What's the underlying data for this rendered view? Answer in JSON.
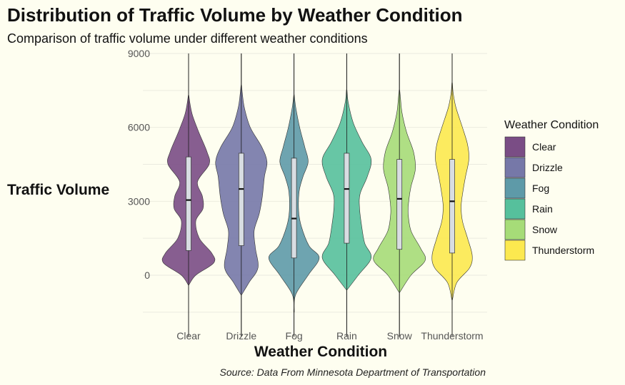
{
  "chart_data": {
    "type": "violin",
    "title": "Distribution of Traffic Volume by Weather Condition",
    "subtitle": "Comparison of traffic volume under different weather conditions",
    "xlabel": "Weather Condition",
    "ylabel": "Traffic Volume",
    "caption": "Source: Data From Minnesota Department of Transportation",
    "ylim": [
      -1500,
      9000
    ],
    "yticks": [
      0,
      3000,
      6000,
      9000
    ],
    "grid": true,
    "legend_title": "Weather Condition",
    "legend_position": "right",
    "categories": [
      "Clear",
      "Drizzle",
      "Fog",
      "Rain",
      "Snow",
      "Thunderstorm"
    ],
    "colors": [
      "#7a4d85",
      "#7678a8",
      "#5e9aa8",
      "#56c09c",
      "#a6dc78",
      "#fce94f"
    ],
    "series": [
      {
        "name": "Clear",
        "whisker": [
          -2500,
          9000
        ],
        "box": {
          "q1": 1000,
          "median": 3050,
          "q3": 4800
        },
        "density": [
          [
            -400,
            0.01
          ],
          [
            0,
            0.28
          ],
          [
            500,
            0.98
          ],
          [
            900,
            0.9
          ],
          [
            1500,
            0.42
          ],
          [
            2200,
            0.28
          ],
          [
            2700,
            0.56
          ],
          [
            3200,
            0.54
          ],
          [
            3800,
            0.35
          ],
          [
            4500,
            0.8
          ],
          [
            5000,
            0.72
          ],
          [
            5800,
            0.4
          ],
          [
            6500,
            0.15
          ],
          [
            7000,
            0.05
          ],
          [
            7300,
            0.01
          ]
        ]
      },
      {
        "name": "Drizzle",
        "whisker": [
          -2500,
          9000
        ],
        "box": {
          "q1": 1200,
          "median": 3500,
          "q3": 4950
        },
        "density": [
          [
            -800,
            0.01
          ],
          [
            -300,
            0.3
          ],
          [
            300,
            0.65
          ],
          [
            1100,
            0.55
          ],
          [
            1800,
            0.5
          ],
          [
            2500,
            0.7
          ],
          [
            3200,
            0.82
          ],
          [
            4000,
            0.9
          ],
          [
            4600,
            1.0
          ],
          [
            5200,
            0.8
          ],
          [
            6000,
            0.35
          ],
          [
            6800,
            0.12
          ],
          [
            7400,
            0.04
          ],
          [
            7700,
            0.01
          ]
        ]
      },
      {
        "name": "Fog",
        "whisker": [
          -2500,
          9000
        ],
        "box": {
          "q1": 700,
          "median": 2300,
          "q3": 4750
        },
        "density": [
          [
            -1500,
            0.01
          ],
          [
            -800,
            0.06
          ],
          [
            0,
            0.55
          ],
          [
            700,
            0.98
          ],
          [
            1200,
            0.58
          ],
          [
            2000,
            0.28
          ],
          [
            2600,
            0.18
          ],
          [
            3400,
            0.2
          ],
          [
            4000,
            0.35
          ],
          [
            4600,
            0.55
          ],
          [
            5200,
            0.42
          ],
          [
            6000,
            0.22
          ],
          [
            6800,
            0.07
          ],
          [
            7300,
            0.01
          ]
        ]
      },
      {
        "name": "Rain",
        "whisker": [
          -2500,
          9000
        ],
        "box": {
          "q1": 1300,
          "median": 3500,
          "q3": 4950
        },
        "density": [
          [
            -600,
            0.01
          ],
          [
            0,
            0.45
          ],
          [
            700,
            0.95
          ],
          [
            1300,
            0.7
          ],
          [
            2000,
            0.58
          ],
          [
            2700,
            0.5
          ],
          [
            3300,
            0.52
          ],
          [
            4000,
            0.8
          ],
          [
            4700,
            0.95
          ],
          [
            5400,
            0.6
          ],
          [
            6200,
            0.25
          ],
          [
            7000,
            0.06
          ],
          [
            7500,
            0.01
          ]
        ]
      },
      {
        "name": "Snow",
        "whisker": [
          -2500,
          9000
        ],
        "box": {
          "q1": 1050,
          "median": 3100,
          "q3": 4700
        },
        "density": [
          [
            -700,
            0.01
          ],
          [
            0,
            0.45
          ],
          [
            600,
            1.0
          ],
          [
            1100,
            0.82
          ],
          [
            1800,
            0.45
          ],
          [
            2500,
            0.34
          ],
          [
            3000,
            0.36
          ],
          [
            3600,
            0.45
          ],
          [
            4300,
            0.62
          ],
          [
            5000,
            0.55
          ],
          [
            5800,
            0.28
          ],
          [
            6600,
            0.1
          ],
          [
            7200,
            0.04
          ],
          [
            7500,
            0.01
          ]
        ]
      },
      {
        "name": "Thunderstorm",
        "whisker": [
          -2500,
          9000
        ],
        "box": {
          "q1": 900,
          "median": 3000,
          "q3": 4700
        },
        "density": [
          [
            -1000,
            0.01
          ],
          [
            -300,
            0.18
          ],
          [
            300,
            0.68
          ],
          [
            800,
            0.78
          ],
          [
            1500,
            0.6
          ],
          [
            2200,
            0.4
          ],
          [
            2800,
            0.35
          ],
          [
            3400,
            0.42
          ],
          [
            4000,
            0.52
          ],
          [
            4700,
            0.65
          ],
          [
            5300,
            0.6
          ],
          [
            6000,
            0.4
          ],
          [
            6800,
            0.15
          ],
          [
            7400,
            0.04
          ],
          [
            7800,
            0.01
          ]
        ]
      }
    ]
  }
}
